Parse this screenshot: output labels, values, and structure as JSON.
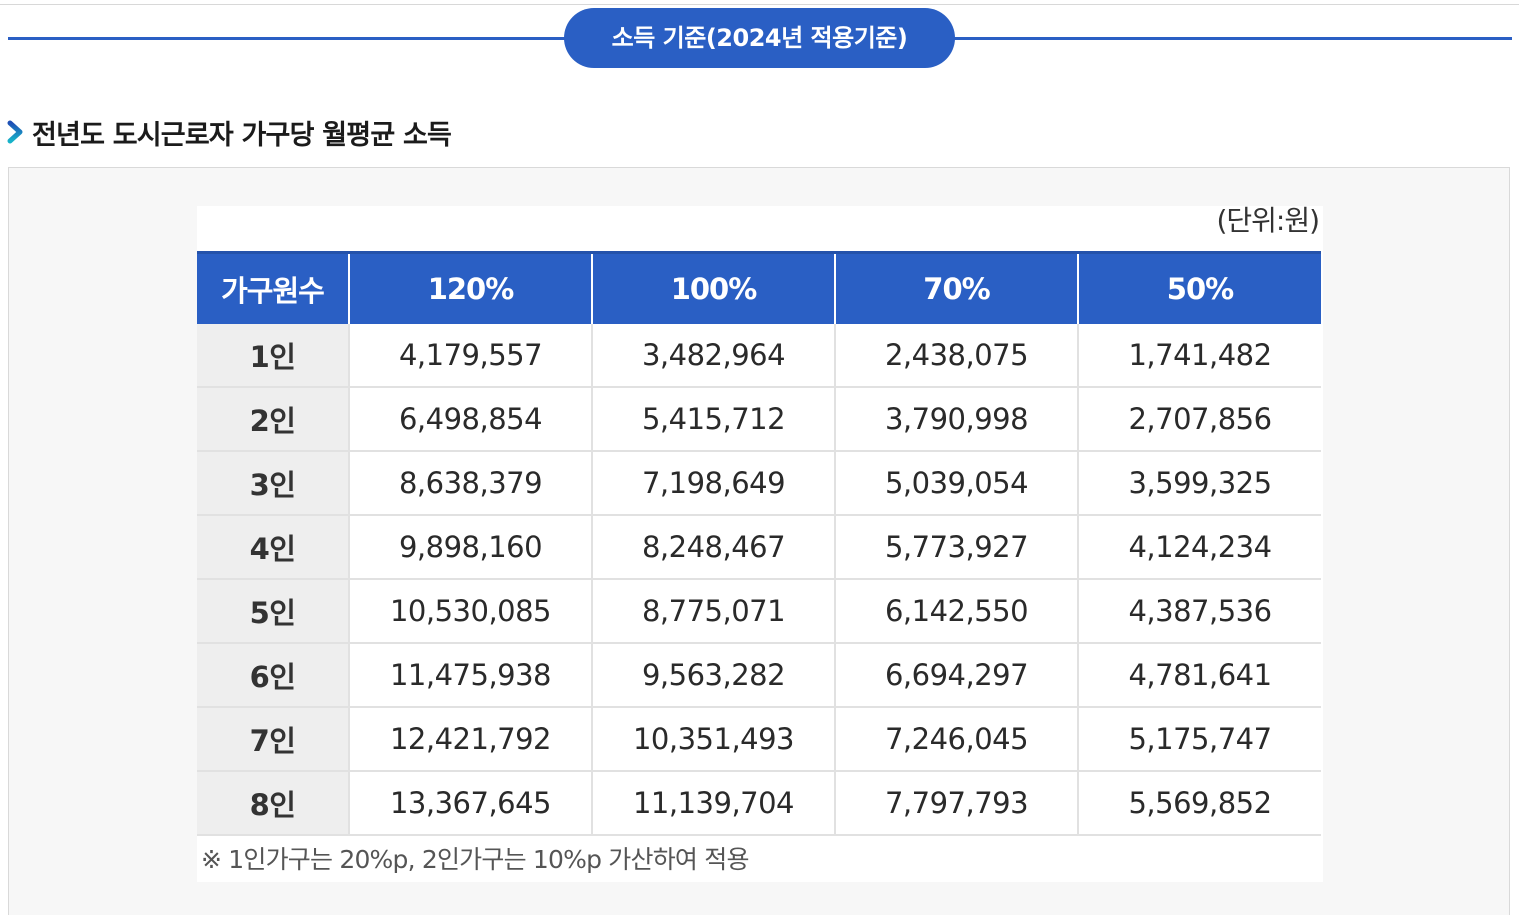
{
  "banner": {
    "title": "소득 기준(2024년 적용기준)"
  },
  "section": {
    "title": "전년도 도시근로자 가구당 월평균 소득"
  },
  "table": {
    "unit": "(단위:원)",
    "headers": [
      "가구원수",
      "120%",
      "100%",
      "70%",
      "50%"
    ],
    "rows": [
      [
        "1인",
        "4,179,557",
        "3,482,964",
        "2,438,075",
        "1,741,482"
      ],
      [
        "2인",
        "6,498,854",
        "5,415,712",
        "3,790,998",
        "2,707,856"
      ],
      [
        "3인",
        "8,638,379",
        "7,198,649",
        "5,039,054",
        "3,599,325"
      ],
      [
        "4인",
        "9,898,160",
        "8,248,467",
        "5,773,927",
        "4,124,234"
      ],
      [
        "5인",
        "10,530,085",
        "8,775,071",
        "6,142,550",
        "4,387,536"
      ],
      [
        "6인",
        "11,475,938",
        "9,563,282",
        "6,694,297",
        "4,781,641"
      ],
      [
        "7인",
        "12,421,792",
        "10,351,493",
        "7,246,045",
        "5,175,747"
      ],
      [
        "8인",
        "13,367,645",
        "11,139,704",
        "7,797,793",
        "5,569,852"
      ]
    ],
    "footnote": "※ 1인가구는 20%p, 2인가구는 10%p 가산하여 적용"
  },
  "colors": {
    "accent": "#2a5fc4",
    "row_head_bg": "#eeeeee",
    "panel_bg": "#f7f7f7"
  },
  "icons": {
    "heading_marker": "chevron-right-icon"
  }
}
